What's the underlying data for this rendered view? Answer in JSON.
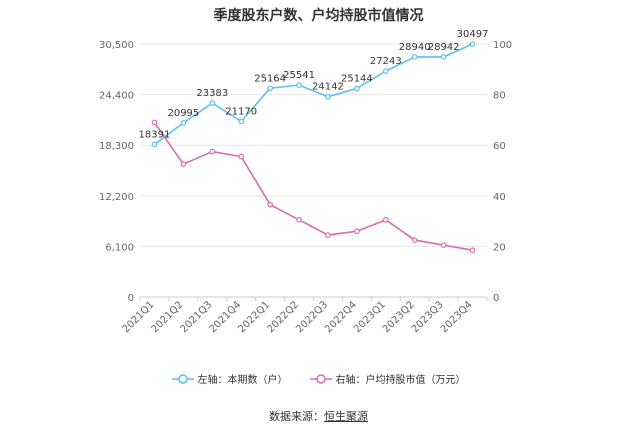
{
  "chart_data": {
    "type": "line",
    "title": "季度股东户数、户均持股市值情况",
    "categories": [
      "2021Q1",
      "2021Q2",
      "2021Q3",
      "2021Q4",
      "2022Q1",
      "2022Q2",
      "2022Q3",
      "2022Q4",
      "2023Q1",
      "2023Q2",
      "2023Q3",
      "2023Q4"
    ],
    "left_axis": {
      "ticks": [
        "0",
        "6,100",
        "12,200",
        "18,300",
        "24,400",
        "30,500"
      ],
      "ylim": [
        0,
        30500
      ]
    },
    "right_axis": {
      "ticks": [
        "0",
        "20",
        "40",
        "60",
        "80",
        "100"
      ],
      "ylim": [
        0,
        100
      ]
    },
    "series": [
      {
        "name": "左轴：本期数（户）",
        "axis": "left",
        "color": "#5bc0eb",
        "values": [
          18391,
          20995,
          23383,
          21170,
          25164,
          25541,
          24142,
          25144,
          27243,
          28940,
          28942,
          30497
        ],
        "labels": [
          "18391",
          "20995",
          "23383",
          "21170",
          "25164",
          "25541",
          "24142",
          "25144",
          "27243",
          "28940",
          "28942",
          "30497"
        ]
      },
      {
        "name": "右轴：户均持股市值（万元）",
        "axis": "right",
        "color": "#d96bb3",
        "values": [
          69,
          52.5,
          57.5,
          55.5,
          36.5,
          30.5,
          24.5,
          26,
          30.5,
          22.5,
          20.5,
          18.5
        ]
      }
    ],
    "grid": true,
    "legend_position": "bottom"
  },
  "source": {
    "prefix": "数据来源：",
    "name": "恒生聚源"
  }
}
